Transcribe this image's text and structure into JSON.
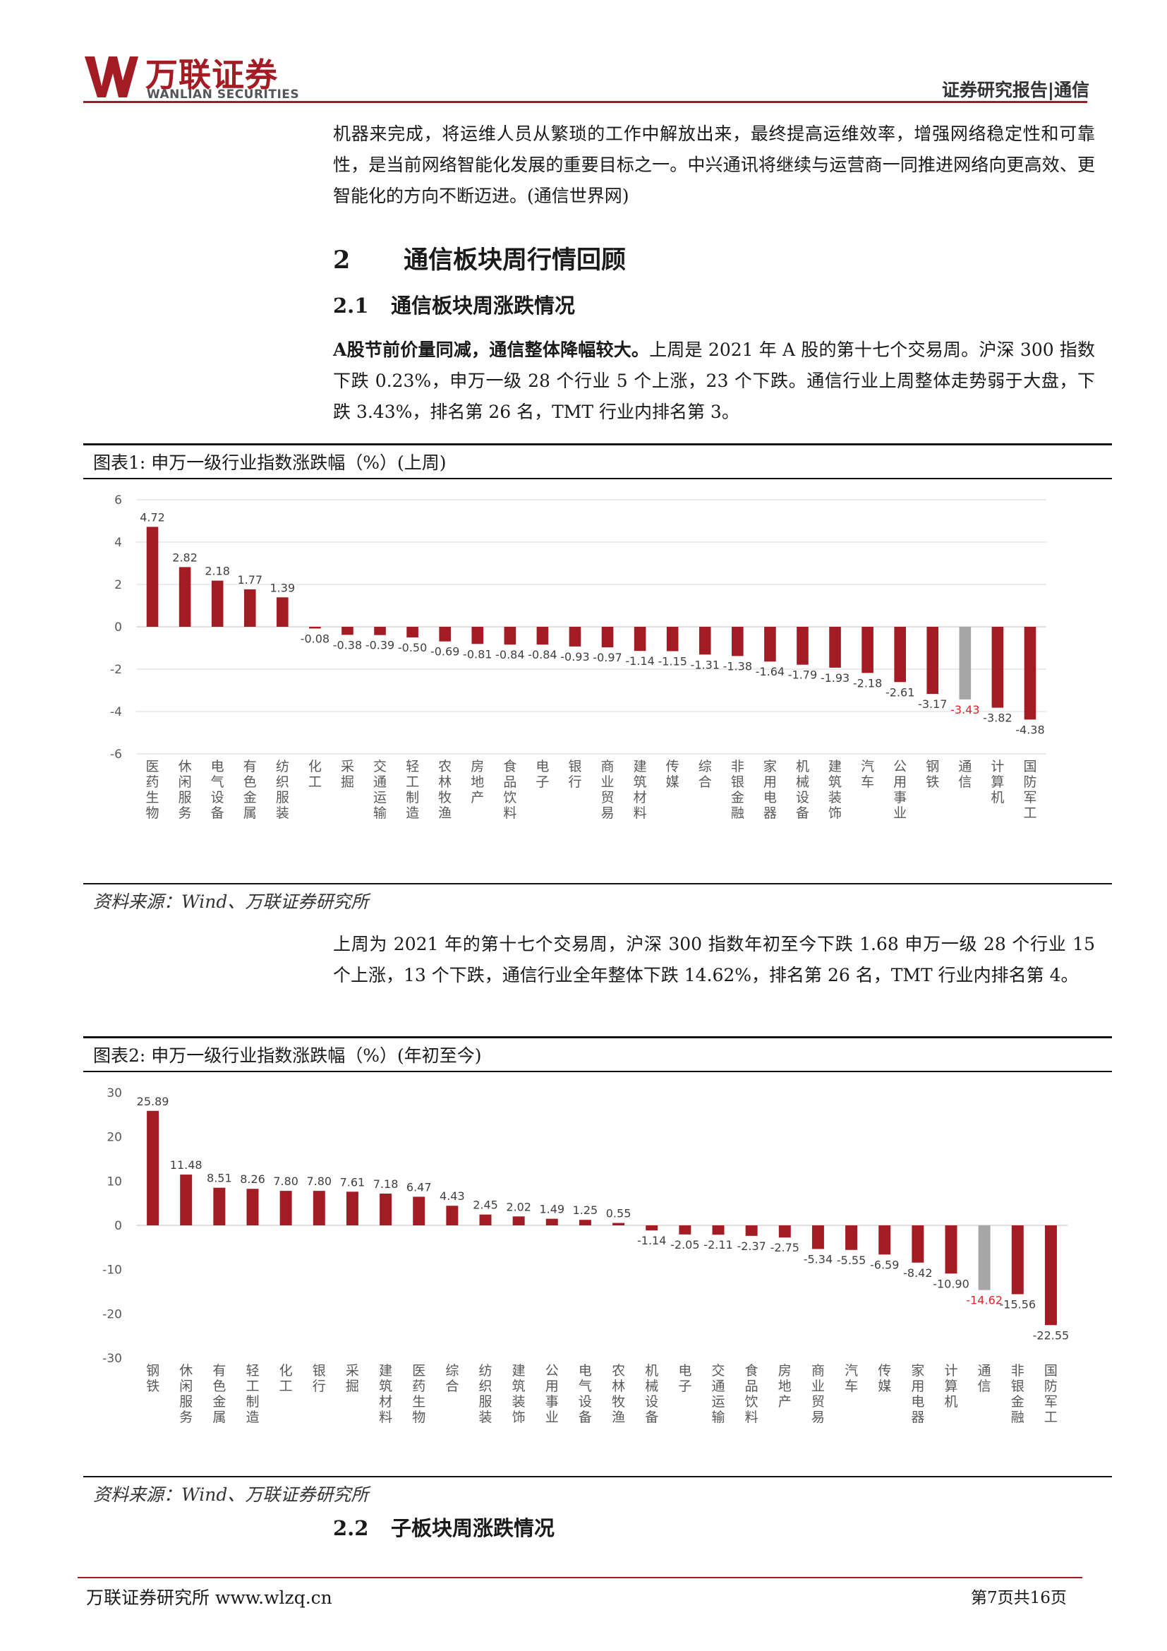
{
  "header": {
    "logo_cn": "万联证券",
    "logo_en": "WANLIAN SECURITIES",
    "report_label": "证券研究报告|通信"
  },
  "intro_paragraph": "机器来完成，将运维人员从繁琐的工作中解放出来，最终提高运维效率，增强网络稳定性和可靠性，是当前网络智能化发展的重要目标之一。中兴通讯将继续与运营商一同推进网络向更高效、更智能化的方向不断迈进。(通信世界网)",
  "section2": {
    "num": "2",
    "title": "通信板块周行情回顾"
  },
  "section2_1": {
    "num": "2.1",
    "title": "通信板块周涨跌情况"
  },
  "para2_1": {
    "lead": "A股节前价量同减，通信整体降幅较大。",
    "body": "上周是 2021 年 A 股的第十七个交易周。沪深 300 指数下跌 0.23%，申万一级 28 个行业 5 个上涨，23 个下跌。通信行业上周整体走势弱于大盘，下跌 3.43%，排名第 26 名，TMT 行业内排名第 3。"
  },
  "figure1": {
    "title": "图表1:  申万一级行业指数涨跌幅（%）(上周)",
    "source": "资料来源：Wind、万联证券研究所"
  },
  "para_mid": "上周为 2021 年的第十七个交易周，沪深 300 指数年初至今下跌 1.68 申万一级 28 个行业 15 个上涨，13 个下跌，通信行业全年整体下跌 14.62%，排名第 26 名，TMT 行业内排名第 4。",
  "figure2": {
    "title": "图表2:  申万一级行业指数涨跌幅（%）(年初至今)",
    "source": "资料来源：Wind、万联证券研究所"
  },
  "section2_2": {
    "num": "2.2",
    "title": "子板块周涨跌情况"
  },
  "footer": {
    "org": "万联证券研究所  www.wlzq.cn",
    "page": "第7页共16页"
  },
  "colors": {
    "bar": "#a31c24",
    "highlight_bar": "#a6a6a6",
    "highlight_label": "#e0242b"
  },
  "chart_data": [
    {
      "type": "bar",
      "title": "",
      "ylim": [
        -6,
        6
      ],
      "yticks": [
        6,
        4,
        2,
        0,
        -2,
        -4,
        -6
      ],
      "grid": true,
      "highlight_category": "通信",
      "categories": [
        "医药生物",
        "休闲服务",
        "电气设备",
        "有色金属",
        "纺织服装",
        "化工",
        "采掘",
        "交通运输",
        "轻工制造",
        "农林牧渔",
        "房地产",
        "食品饮料",
        "电子",
        "银行",
        "商业贸易",
        "建筑材料",
        "传媒",
        "综合",
        "非银金融",
        "家用电器",
        "机械设备",
        "建筑装饰",
        "汽车",
        "公用事业",
        "钢铁",
        "通信",
        "计算机",
        "国防军工"
      ],
      "values": [
        4.72,
        2.82,
        2.18,
        1.77,
        1.39,
        -0.08,
        -0.38,
        -0.39,
        -0.5,
        -0.69,
        -0.81,
        -0.84,
        -0.84,
        -0.93,
        -0.97,
        -1.14,
        -1.15,
        -1.31,
        -1.38,
        -1.64,
        -1.79,
        -1.93,
        -2.18,
        -2.61,
        -3.17,
        -3.43,
        -3.82,
        -4.38
      ]
    },
    {
      "type": "bar",
      "title": "",
      "ylim": [
        -30,
        30
      ],
      "yticks": [
        30,
        20,
        10,
        0,
        -10,
        -20,
        -30
      ],
      "grid": false,
      "highlight_category": "通信",
      "categories": [
        "钢铁",
        "休闲服务",
        "有色金属",
        "轻工制造",
        "化工",
        "银行",
        "采掘",
        "建筑材料",
        "医药生物",
        "综合",
        "纺织服装",
        "建筑装饰",
        "公用事业",
        "电气设备",
        "农林牧渔",
        "机械设备",
        "电子",
        "交通运输",
        "食品饮料",
        "房地产",
        "商业贸易",
        "汽车",
        "传媒",
        "家用电器",
        "计算机",
        "通信",
        "非银金融",
        "国防军工"
      ],
      "values": [
        25.89,
        11.48,
        8.51,
        8.26,
        7.8,
        7.8,
        7.61,
        7.18,
        6.47,
        4.43,
        2.45,
        2.02,
        1.49,
        1.25,
        0.55,
        -1.14,
        -2.05,
        -2.11,
        -2.37,
        -2.75,
        -5.34,
        -5.55,
        -6.59,
        -8.42,
        -10.9,
        -14.62,
        -15.56,
        -22.55
      ]
    }
  ]
}
